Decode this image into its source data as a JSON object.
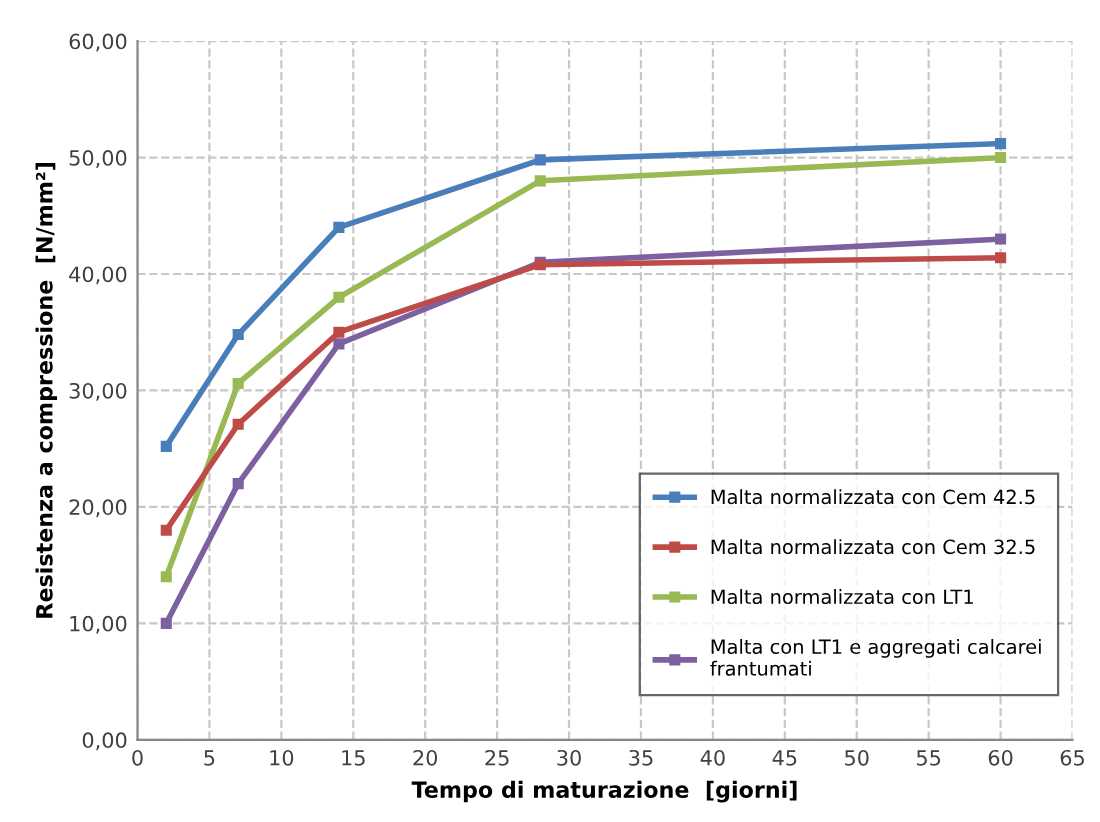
{
  "chart_data": {
    "type": "line",
    "xlabel": "Tempo di maturazione  [giorni]",
    "ylabel": "Resistenza a compressione  [N/mm²]",
    "x": [
      2,
      7,
      14,
      28,
      60
    ],
    "series": [
      {
        "name": "Malta normalizzata con Cem 42.5",
        "color": "#4a7ebb",
        "values": [
          25.2,
          34.8,
          44.0,
          49.8,
          51.2
        ]
      },
      {
        "name": "Malta normalizzata con Cem 32.5",
        "color": "#be4b48",
        "values": [
          18.0,
          27.1,
          35.0,
          40.8,
          41.4
        ]
      },
      {
        "name": "Malta normalizzata con LT1",
        "color": "#98b954",
        "values": [
          14.0,
          30.6,
          38.0,
          48.0,
          50.0
        ]
      },
      {
        "name": "Malta con LT1 e aggregati calcarei frantumati",
        "color": "#7d60a0",
        "values": [
          10.0,
          22.0,
          34.0,
          41.0,
          43.0
        ]
      }
    ],
    "xlim": [
      0,
      65
    ],
    "xticks": [
      0,
      5,
      10,
      15,
      20,
      25,
      30,
      35,
      40,
      45,
      50,
      55,
      60,
      65
    ],
    "ylim": [
      0,
      60
    ],
    "yticks": [
      {
        "value": 0,
        "label": "0,00"
      },
      {
        "value": 10,
        "label": "10,00"
      },
      {
        "value": 20,
        "label": "20,00"
      },
      {
        "value": 30,
        "label": "30,00"
      },
      {
        "value": 40,
        "label": "40,00"
      },
      {
        "value": 50,
        "label": "50,00"
      },
      {
        "value": 60,
        "label": "60,00"
      }
    ],
    "grid": true,
    "legend": "bottom right",
    "marker": "square",
    "line_style": "solid"
  }
}
